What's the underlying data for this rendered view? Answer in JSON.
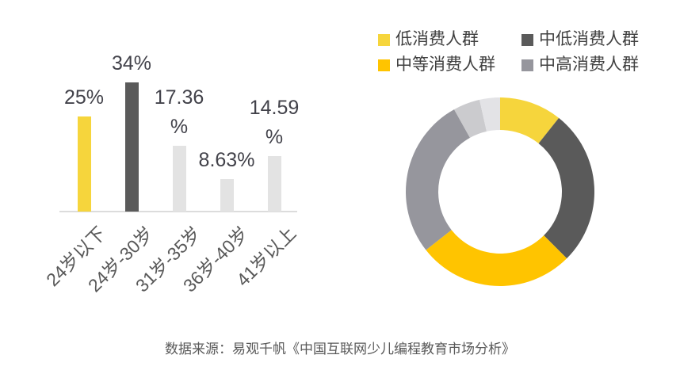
{
  "page": {
    "background_color": "#FFFFFF"
  },
  "caption": {
    "text": "数据来源：易观千帆《中国互联网少儿编程教育市场分析》",
    "color": "#595959"
  },
  "chart_data": [
    {
      "id": "age-distribution-bar-chart",
      "type": "bar",
      "categories": [
        "24岁以下",
        "24岁-30岁",
        "31岁-35岁",
        "36岁-40岁",
        "41岁以上"
      ],
      "values": [
        25,
        34,
        17.36,
        8.63,
        14.59
      ],
      "data_labels": [
        [
          "25%"
        ],
        [
          "34%"
        ],
        [
          "17.36",
          "%"
        ],
        [
          "8.63%"
        ],
        [
          "14.59",
          "%"
        ]
      ],
      "bar_colors": [
        "#F6D53C",
        "#5A5A5A",
        "#E3E3E3",
        "#E3E3E3",
        "#E3E3E3"
      ],
      "title": "",
      "xlabel": "",
      "ylabel": "",
      "ylim": [
        0,
        35.5
      ],
      "grid": false,
      "legend": false,
      "axis_line_color": "#DCDCDC",
      "value_label_color": "#42424A",
      "category_label_color": "#595959",
      "category_label_rotation_deg": -45
    },
    {
      "id": "consumer-group-donut-chart",
      "type": "pie",
      "subtype": "donut",
      "title": "",
      "direction": "clockwise",
      "start_angle_deg": 0,
      "legend_position": "top",
      "legend_text_color": "#404040",
      "segments": [
        {
          "label": "低消费人群",
          "value": 10.7,
          "color": "#F6D53C",
          "in_legend": true
        },
        {
          "label": "中低消费人群",
          "value": 26.8,
          "color": "#5A5A5A",
          "in_legend": true
        },
        {
          "label": "中等消费人群",
          "value": 26.9,
          "color": "#FFC400",
          "in_legend": true
        },
        {
          "label": "中高消费人群",
          "value": 27.5,
          "color": "#96969D",
          "in_legend": true
        },
        {
          "label": "",
          "value": 4.6,
          "color": "#CBCBCE",
          "in_legend": false
        },
        {
          "label": "",
          "value": 3.5,
          "color": "#E3E3E6",
          "in_legend": false
        }
      ]
    }
  ]
}
